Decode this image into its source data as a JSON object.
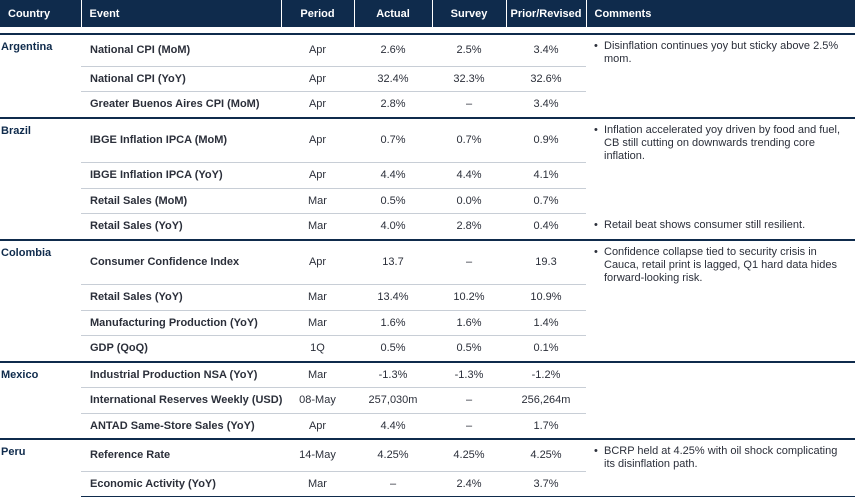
{
  "headers": {
    "country": "Country",
    "event": "Event",
    "period": "Period",
    "actual": "Actual",
    "survey": "Survey",
    "prior": "Prior/Revised",
    "comments": "Comments"
  },
  "bullet_symbol": "•",
  "groups": [
    {
      "country": "Argentina",
      "rows": [
        {
          "event": "National CPI (MoM)",
          "period": "Apr",
          "actual": "2.6%",
          "survey": "2.5%",
          "prior": "3.4%",
          "comment": "Disinflation continues yoy but sticky above 2.5% mom."
        },
        {
          "event": "National CPI (YoY)",
          "period": "Apr",
          "actual": "32.4%",
          "survey": "32.3%",
          "prior": "32.6%",
          "comment": ""
        },
        {
          "event": "Greater Buenos Aires CPI (MoM)",
          "period": "Apr",
          "actual": "2.8%",
          "survey": "–",
          "prior": "3.4%",
          "comment": ""
        }
      ]
    },
    {
      "country": "Brazil",
      "rows": [
        {
          "event": "IBGE Inflation IPCA (MoM)",
          "period": "Apr",
          "actual": "0.7%",
          "survey": "0.7%",
          "prior": "0.9%",
          "comment": "Inflation accelerated yoy driven by food and fuel, CB still cutting on downwards trending core inflation."
        },
        {
          "event": "IBGE Inflation IPCA (YoY)",
          "period": "Apr",
          "actual": "4.4%",
          "survey": "4.4%",
          "prior": "4.1%",
          "comment": ""
        },
        {
          "event": "Retail Sales (MoM)",
          "period": "Mar",
          "actual": "0.5%",
          "survey": "0.0%",
          "prior": "0.7%",
          "comment": ""
        },
        {
          "event": "Retail Sales (YoY)",
          "period": "Mar",
          "actual": "4.0%",
          "survey": "2.8%",
          "prior": "0.4%",
          "comment": "Retail beat shows consumer still resilient."
        }
      ]
    },
    {
      "country": "Colombia",
      "rows": [
        {
          "event": "Consumer Confidence Index",
          "period": "Apr",
          "actual": "13.7",
          "survey": "–",
          "prior": "19.3",
          "comment": "Confidence collapse tied to security crisis in Cauca, retail print is lagged, Q1 hard data hides forward-looking risk."
        },
        {
          "event": "Retail Sales (YoY)",
          "period": "Mar",
          "actual": "13.4%",
          "survey": "10.2%",
          "prior": "10.9%",
          "comment": ""
        },
        {
          "event": "Manufacturing Production (YoY)",
          "period": "Mar",
          "actual": "1.6%",
          "survey": "1.6%",
          "prior": "1.4%",
          "comment": ""
        },
        {
          "event": "GDP (QoQ)",
          "period": "1Q",
          "actual": "0.5%",
          "survey": "0.5%",
          "prior": "0.1%",
          "comment": ""
        }
      ]
    },
    {
      "country": "Mexico",
      "rows": [
        {
          "event": "Industrial Production NSA (YoY)",
          "period": "Mar",
          "actual": "-1.3%",
          "survey": "-1.3%",
          "prior": "-1.2%",
          "comment": ""
        },
        {
          "event": "International Reserves Weekly (USD)",
          "period": "08-May",
          "actual": "257,030m",
          "survey": "–",
          "prior": "256,264m",
          "comment": ""
        },
        {
          "event": "ANTAD Same-Store Sales (YoY)",
          "period": "Apr",
          "actual": "4.4%",
          "survey": "–",
          "prior": "1.7%",
          "comment": ""
        }
      ]
    },
    {
      "country": "Peru",
      "rows": [
        {
          "event": "Reference Rate",
          "period": "14-May",
          "actual": "4.25%",
          "survey": "4.25%",
          "prior": "4.25%",
          "comment": "BCRP held at 4.25% with oil shock complicating its disinflation path."
        },
        {
          "event": "Economic Activity (YoY)",
          "period": "Mar",
          "actual": "–",
          "survey": "2.4%",
          "prior": "3.7%",
          "comment": ""
        }
      ]
    }
  ]
}
